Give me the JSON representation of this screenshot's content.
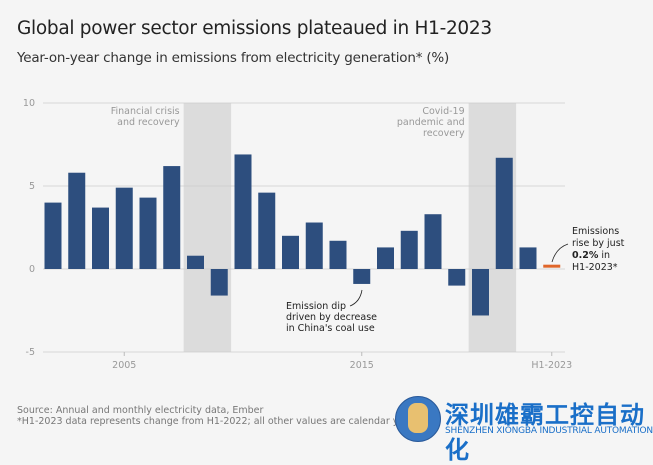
{
  "title": "Global power sector emissions plateaued in H1-2023",
  "subtitle": "Year-on-year change in emissions from electricity generation* (%)",
  "chart_data": {
    "type": "bar",
    "categories": [
      "2002",
      "2003",
      "2004",
      "2005",
      "2006",
      "2007",
      "2008",
      "2009",
      "2010",
      "2011",
      "2012",
      "2013",
      "2014",
      "2015",
      "2016",
      "2017",
      "2018",
      "2019",
      "2020",
      "2021",
      "2022",
      "H1-2023"
    ],
    "values": [
      4.0,
      5.8,
      3.7,
      4.9,
      4.3,
      6.2,
      0.8,
      -1.6,
      6.9,
      4.6,
      2.0,
      2.8,
      1.7,
      -0.9,
      1.3,
      2.3,
      3.3,
      -1.0,
      -2.8,
      6.7,
      1.3,
      0.2
    ],
    "ylim": [
      -5,
      10
    ],
    "yticks": [
      "10",
      "5",
      "0",
      "-5"
    ],
    "xticks": [
      "2005",
      "2015",
      "H1-2023"
    ],
    "grid": true,
    "colors": {
      "bar": "#2d4e7e",
      "highlight": "#e0662a",
      "shade": "#dcdcdc"
    },
    "shaded_periods": [
      {
        "from": "2008",
        "to": "2009",
        "label_lines": [
          "Financial crisis",
          "and recovery"
        ]
      },
      {
        "from": "2020",
        "to": "2021",
        "label_lines": [
          "Covid-19",
          "pandemic and",
          "recovery"
        ]
      }
    ],
    "annotations": [
      {
        "lines": [
          "Emission dip",
          "driven by decrease",
          "in China's coal use"
        ]
      },
      {
        "lines": [
          "Emissions",
          "rise by just",
          "0.2% in",
          "H1-2023*"
        ]
      }
    ]
  },
  "footer": {
    "source": "Source: Annual and monthly electricity data, Ember",
    "note": "*H1-2023 data represents change from H1-2022; all other values are calendar yea"
  },
  "watermark": {
    "cn": "深圳雄霸工控自动化",
    "en": "SHENZHEN XIONGBA INDUSTRIAL AUTOMATION"
  }
}
